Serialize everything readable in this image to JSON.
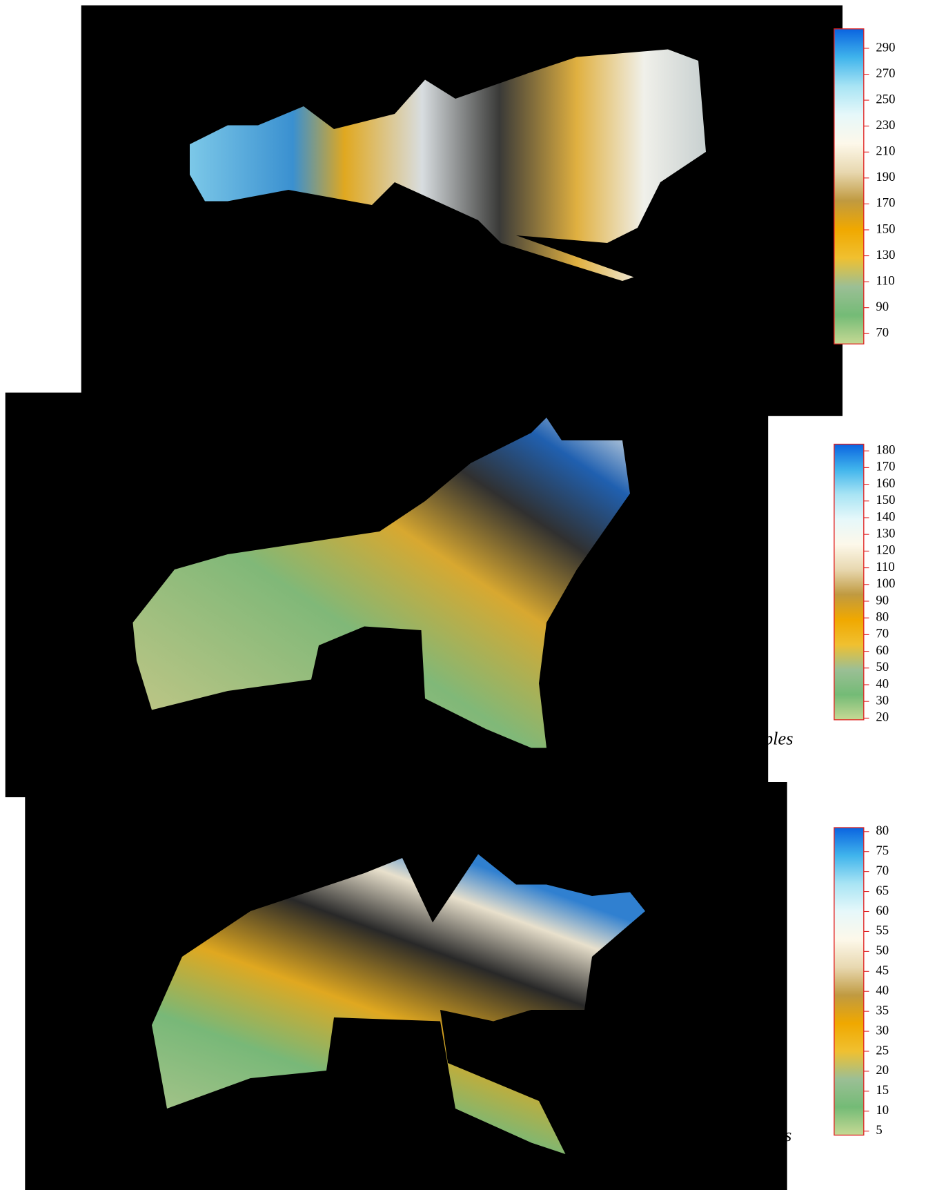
{
  "chart_data": [
    {
      "type": "surface",
      "colormap": [
        "#c6d994",
        "#74bb76",
        "#9bbf95",
        "#f0c030",
        "#f0a800",
        "#c09a40",
        "#e8d8b0",
        "#fdf8ea",
        "#e6f8fa",
        "#a8e4f4",
        "#40b4ec",
        "#0a64e0"
      ],
      "clim": [
        62,
        305
      ],
      "cticks": [
        70,
        90,
        110,
        130,
        150,
        170,
        190,
        210,
        230,
        250,
        270,
        290
      ]
    },
    {
      "type": "surface",
      "colormap": [
        "#c6d994",
        "#74bb76",
        "#9bbf95",
        "#f0c030",
        "#f0a800",
        "#c09a40",
        "#e8d8b0",
        "#fdf8ea",
        "#e6f8fa",
        "#a8e4f4",
        "#40b4ec",
        "#0a64e0"
      ],
      "clim": [
        19,
        184
      ],
      "cticks": [
        20,
        30,
        40,
        50,
        60,
        70,
        80,
        90,
        100,
        110,
        120,
        130,
        140,
        150,
        160,
        170,
        180
      ],
      "annotation": "ples"
    },
    {
      "type": "surface",
      "colormap": [
        "#c6d994",
        "#74bb76",
        "#9bbf95",
        "#f0c030",
        "#f0a800",
        "#c09a40",
        "#e8d8b0",
        "#fdf8ea",
        "#e6f8fa",
        "#a8e4f4",
        "#40b4ec",
        "#0a64e0"
      ],
      "clim": [
        4,
        81
      ],
      "cticks": [
        5,
        10,
        15,
        20,
        25,
        30,
        35,
        40,
        45,
        50,
        55,
        60,
        65,
        70,
        75,
        80
      ],
      "annotation": "s"
    }
  ]
}
